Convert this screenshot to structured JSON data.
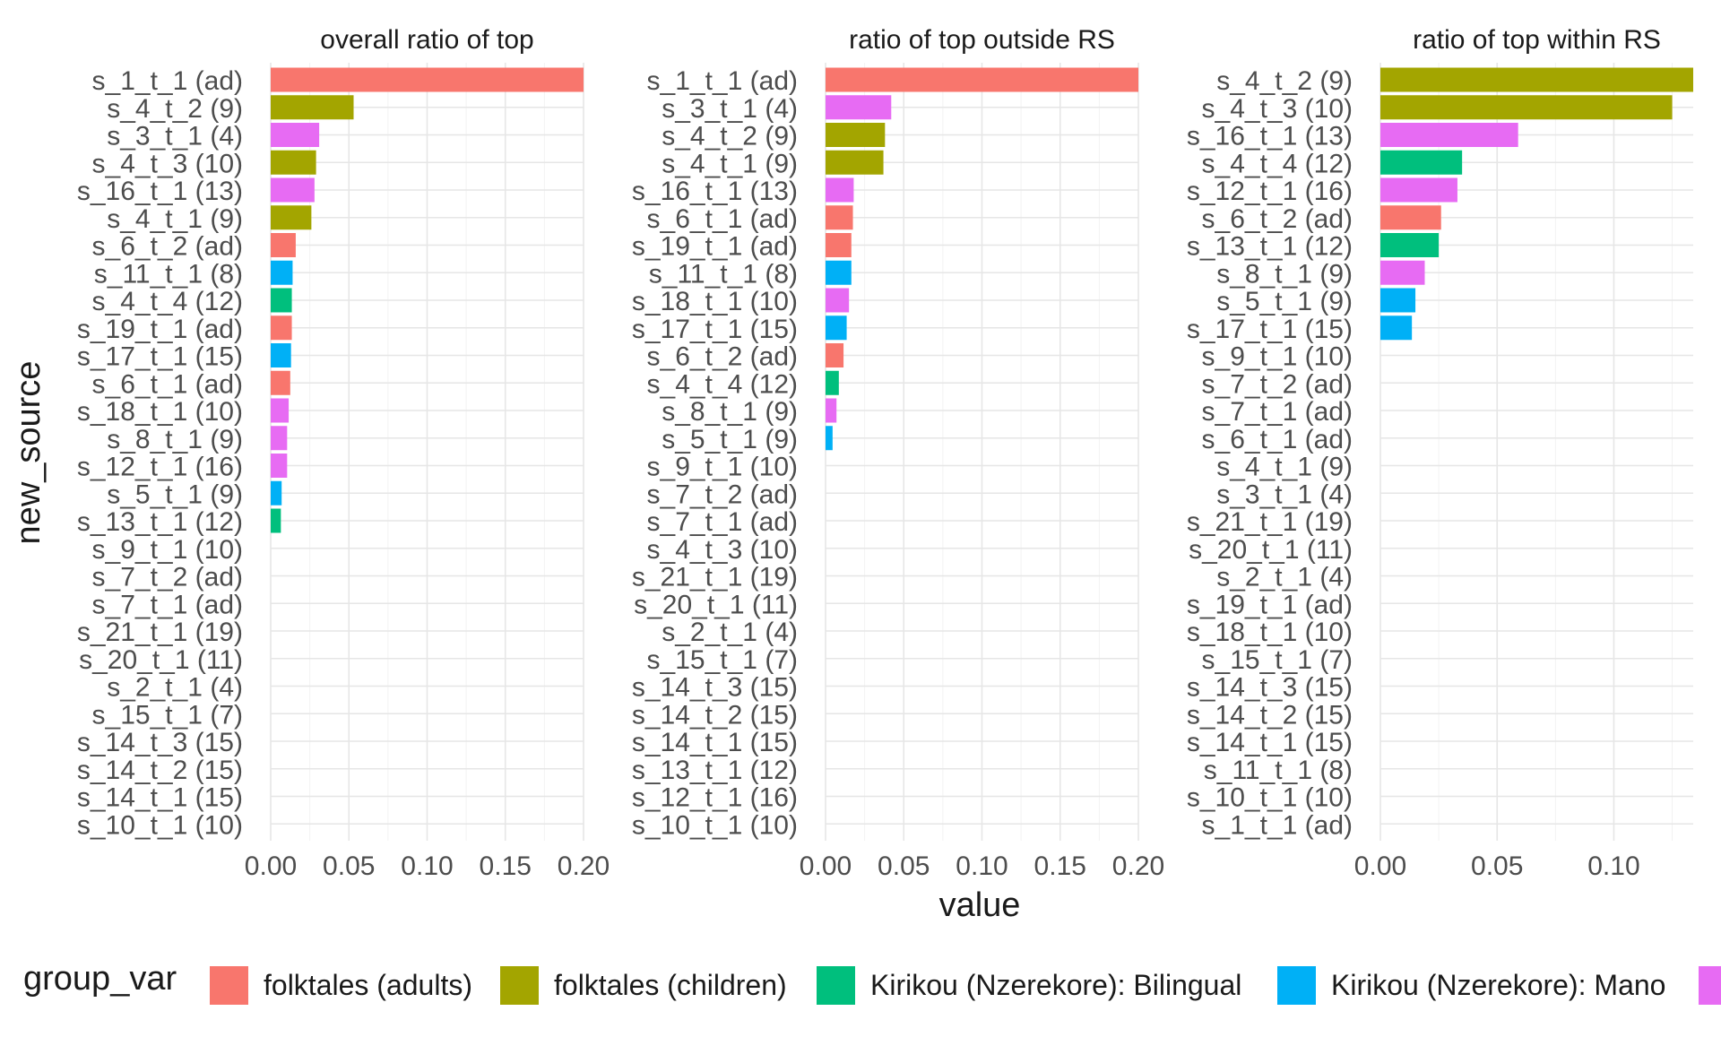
{
  "chart_data": {
    "type": "bar",
    "orientation": "horizontal",
    "xlabel": "value",
    "ylabel": "new_source",
    "grid": true,
    "legend": {
      "title": "group_var",
      "position": "bottom",
      "entries": [
        {
          "label": "folktales (adults)",
          "color": "#F8766D"
        },
        {
          "label": "folktales (children)",
          "color": "#A3A500"
        },
        {
          "label": "Kirikou (Nzerekore): Bilingual",
          "color": "#00BF7D"
        },
        {
          "label": "Kirikou (Nzerekore): Mano",
          "color": "#00B0F6"
        },
        {
          "label": "",
          "color": "#E76BF3"
        }
      ]
    },
    "panels": [
      {
        "title": "overall ratio of top",
        "xlim": [
          0,
          0.2
        ],
        "ticks": [
          "0.00",
          "0.05",
          "0.10",
          "0.15",
          "0.20"
        ],
        "tick_values": [
          0,
          0.05,
          0.1,
          0.15,
          0.2
        ],
        "categories": [
          "s_1_t_1 (ad)",
          "s_4_t_2 (9)",
          "s_3_t_1 (4)",
          "s_4_t_3 (10)",
          "s_16_t_1 (13)",
          "s_4_t_1 (9)",
          "s_6_t_2 (ad)",
          "s_11_t_1 (8)",
          "s_4_t_4 (12)",
          "s_19_t_1 (ad)",
          "s_17_t_1 (15)",
          "s_6_t_1 (ad)",
          "s_18_t_1 (10)",
          "s_8_t_1 (9)",
          "s_12_t_1 (16)",
          "s_5_t_1 (9)",
          "s_13_t_1 (12)",
          "s_9_t_1 (10)",
          "s_7_t_2 (ad)",
          "s_7_t_1 (ad)",
          "s_21_t_1 (19)",
          "s_20_t_1 (11)",
          "s_2_t_1 (4)",
          "s_15_t_1 (7)",
          "s_14_t_3 (15)",
          "s_14_t_2 (15)",
          "s_14_t_1 (15)",
          "s_10_t_1 (10)"
        ],
        "values": [
          0.2,
          0.053,
          0.031,
          0.029,
          0.028,
          0.026,
          0.016,
          0.014,
          0.0135,
          0.0135,
          0.013,
          0.0125,
          0.0115,
          0.0105,
          0.0105,
          0.007,
          0.0065,
          0,
          0,
          0,
          0,
          0,
          0,
          0,
          0,
          0,
          0,
          0
        ],
        "groups": [
          0,
          1,
          4,
          1,
          4,
          1,
          0,
          3,
          2,
          0,
          3,
          0,
          4,
          4,
          4,
          3,
          2,
          null,
          null,
          null,
          null,
          null,
          null,
          null,
          null,
          null,
          null,
          null
        ]
      },
      {
        "title": "ratio of top outside RS",
        "xlim": [
          0,
          0.2
        ],
        "ticks": [
          "0.00",
          "0.05",
          "0.10",
          "0.15",
          "0.20"
        ],
        "tick_values": [
          0,
          0.05,
          0.1,
          0.15,
          0.2
        ],
        "categories": [
          "s_1_t_1 (ad)",
          "s_3_t_1 (4)",
          "s_4_t_2 (9)",
          "s_4_t_1 (9)",
          "s_16_t_1 (13)",
          "s_6_t_1 (ad)",
          "s_19_t_1 (ad)",
          "s_11_t_1 (8)",
          "s_18_t_1 (10)",
          "s_17_t_1 (15)",
          "s_6_t_2 (ad)",
          "s_4_t_4 (12)",
          "s_8_t_1 (9)",
          "s_5_t_1 (9)",
          "s_9_t_1 (10)",
          "s_7_t_2 (ad)",
          "s_7_t_1 (ad)",
          "s_4_t_3 (10)",
          "s_21_t_1 (19)",
          "s_20_t_1 (11)",
          "s_2_t_1 (4)",
          "s_15_t_1 (7)",
          "s_14_t_3 (15)",
          "s_14_t_2 (15)",
          "s_14_t_1 (15)",
          "s_13_t_1 (12)",
          "s_12_t_1 (16)",
          "s_10_t_1 (10)"
        ],
        "values": [
          0.2,
          0.042,
          0.038,
          0.037,
          0.018,
          0.0175,
          0.0165,
          0.0165,
          0.015,
          0.0135,
          0.0115,
          0.0085,
          0.007,
          0.0045,
          0,
          0,
          0,
          0,
          0,
          0,
          0,
          0,
          0,
          0,
          0,
          0,
          0,
          0
        ],
        "groups": [
          0,
          4,
          1,
          1,
          4,
          0,
          0,
          3,
          4,
          3,
          0,
          2,
          4,
          3,
          null,
          null,
          null,
          null,
          null,
          null,
          null,
          null,
          null,
          null,
          null,
          null,
          null,
          null
        ]
      },
      {
        "title": "ratio of top within RS",
        "xlim": [
          0,
          0.134
        ],
        "ticks": [
          "0.00",
          "0.05",
          "0.10"
        ],
        "tick_values": [
          0,
          0.05,
          0.1
        ],
        "categories": [
          "s_4_t_2 (9)",
          "s_4_t_3 (10)",
          "s_16_t_1 (13)",
          "s_4_t_4 (12)",
          "s_12_t_1 (16)",
          "s_6_t_2 (ad)",
          "s_13_t_1 (12)",
          "s_8_t_1 (9)",
          "s_5_t_1 (9)",
          "s_17_t_1 (15)",
          "s_9_t_1 (10)",
          "s_7_t_2 (ad)",
          "s_7_t_1 (ad)",
          "s_6_t_1 (ad)",
          "s_4_t_1 (9)",
          "s_3_t_1 (4)",
          "s_21_t_1 (19)",
          "s_20_t_1 (11)",
          "s_2_t_1 (4)",
          "s_19_t_1 (ad)",
          "s_18_t_1 (10)",
          "s_15_t_1 (7)",
          "s_14_t_3 (15)",
          "s_14_t_2 (15)",
          "s_14_t_1 (15)",
          "s_11_t_1 (8)",
          "s_10_t_1 (10)",
          "s_1_t_1 (ad)"
        ],
        "values": [
          0.134,
          0.125,
          0.059,
          0.035,
          0.033,
          0.026,
          0.025,
          0.019,
          0.015,
          0.0135,
          0,
          0,
          0,
          0,
          0,
          0,
          0,
          0,
          0,
          0,
          0,
          0,
          0,
          0,
          0,
          0,
          0,
          0
        ],
        "groups": [
          1,
          1,
          4,
          2,
          4,
          0,
          2,
          4,
          3,
          3,
          null,
          null,
          null,
          null,
          null,
          null,
          null,
          null,
          null,
          null,
          null,
          null,
          null,
          null,
          null,
          null,
          null,
          null
        ]
      }
    ]
  }
}
